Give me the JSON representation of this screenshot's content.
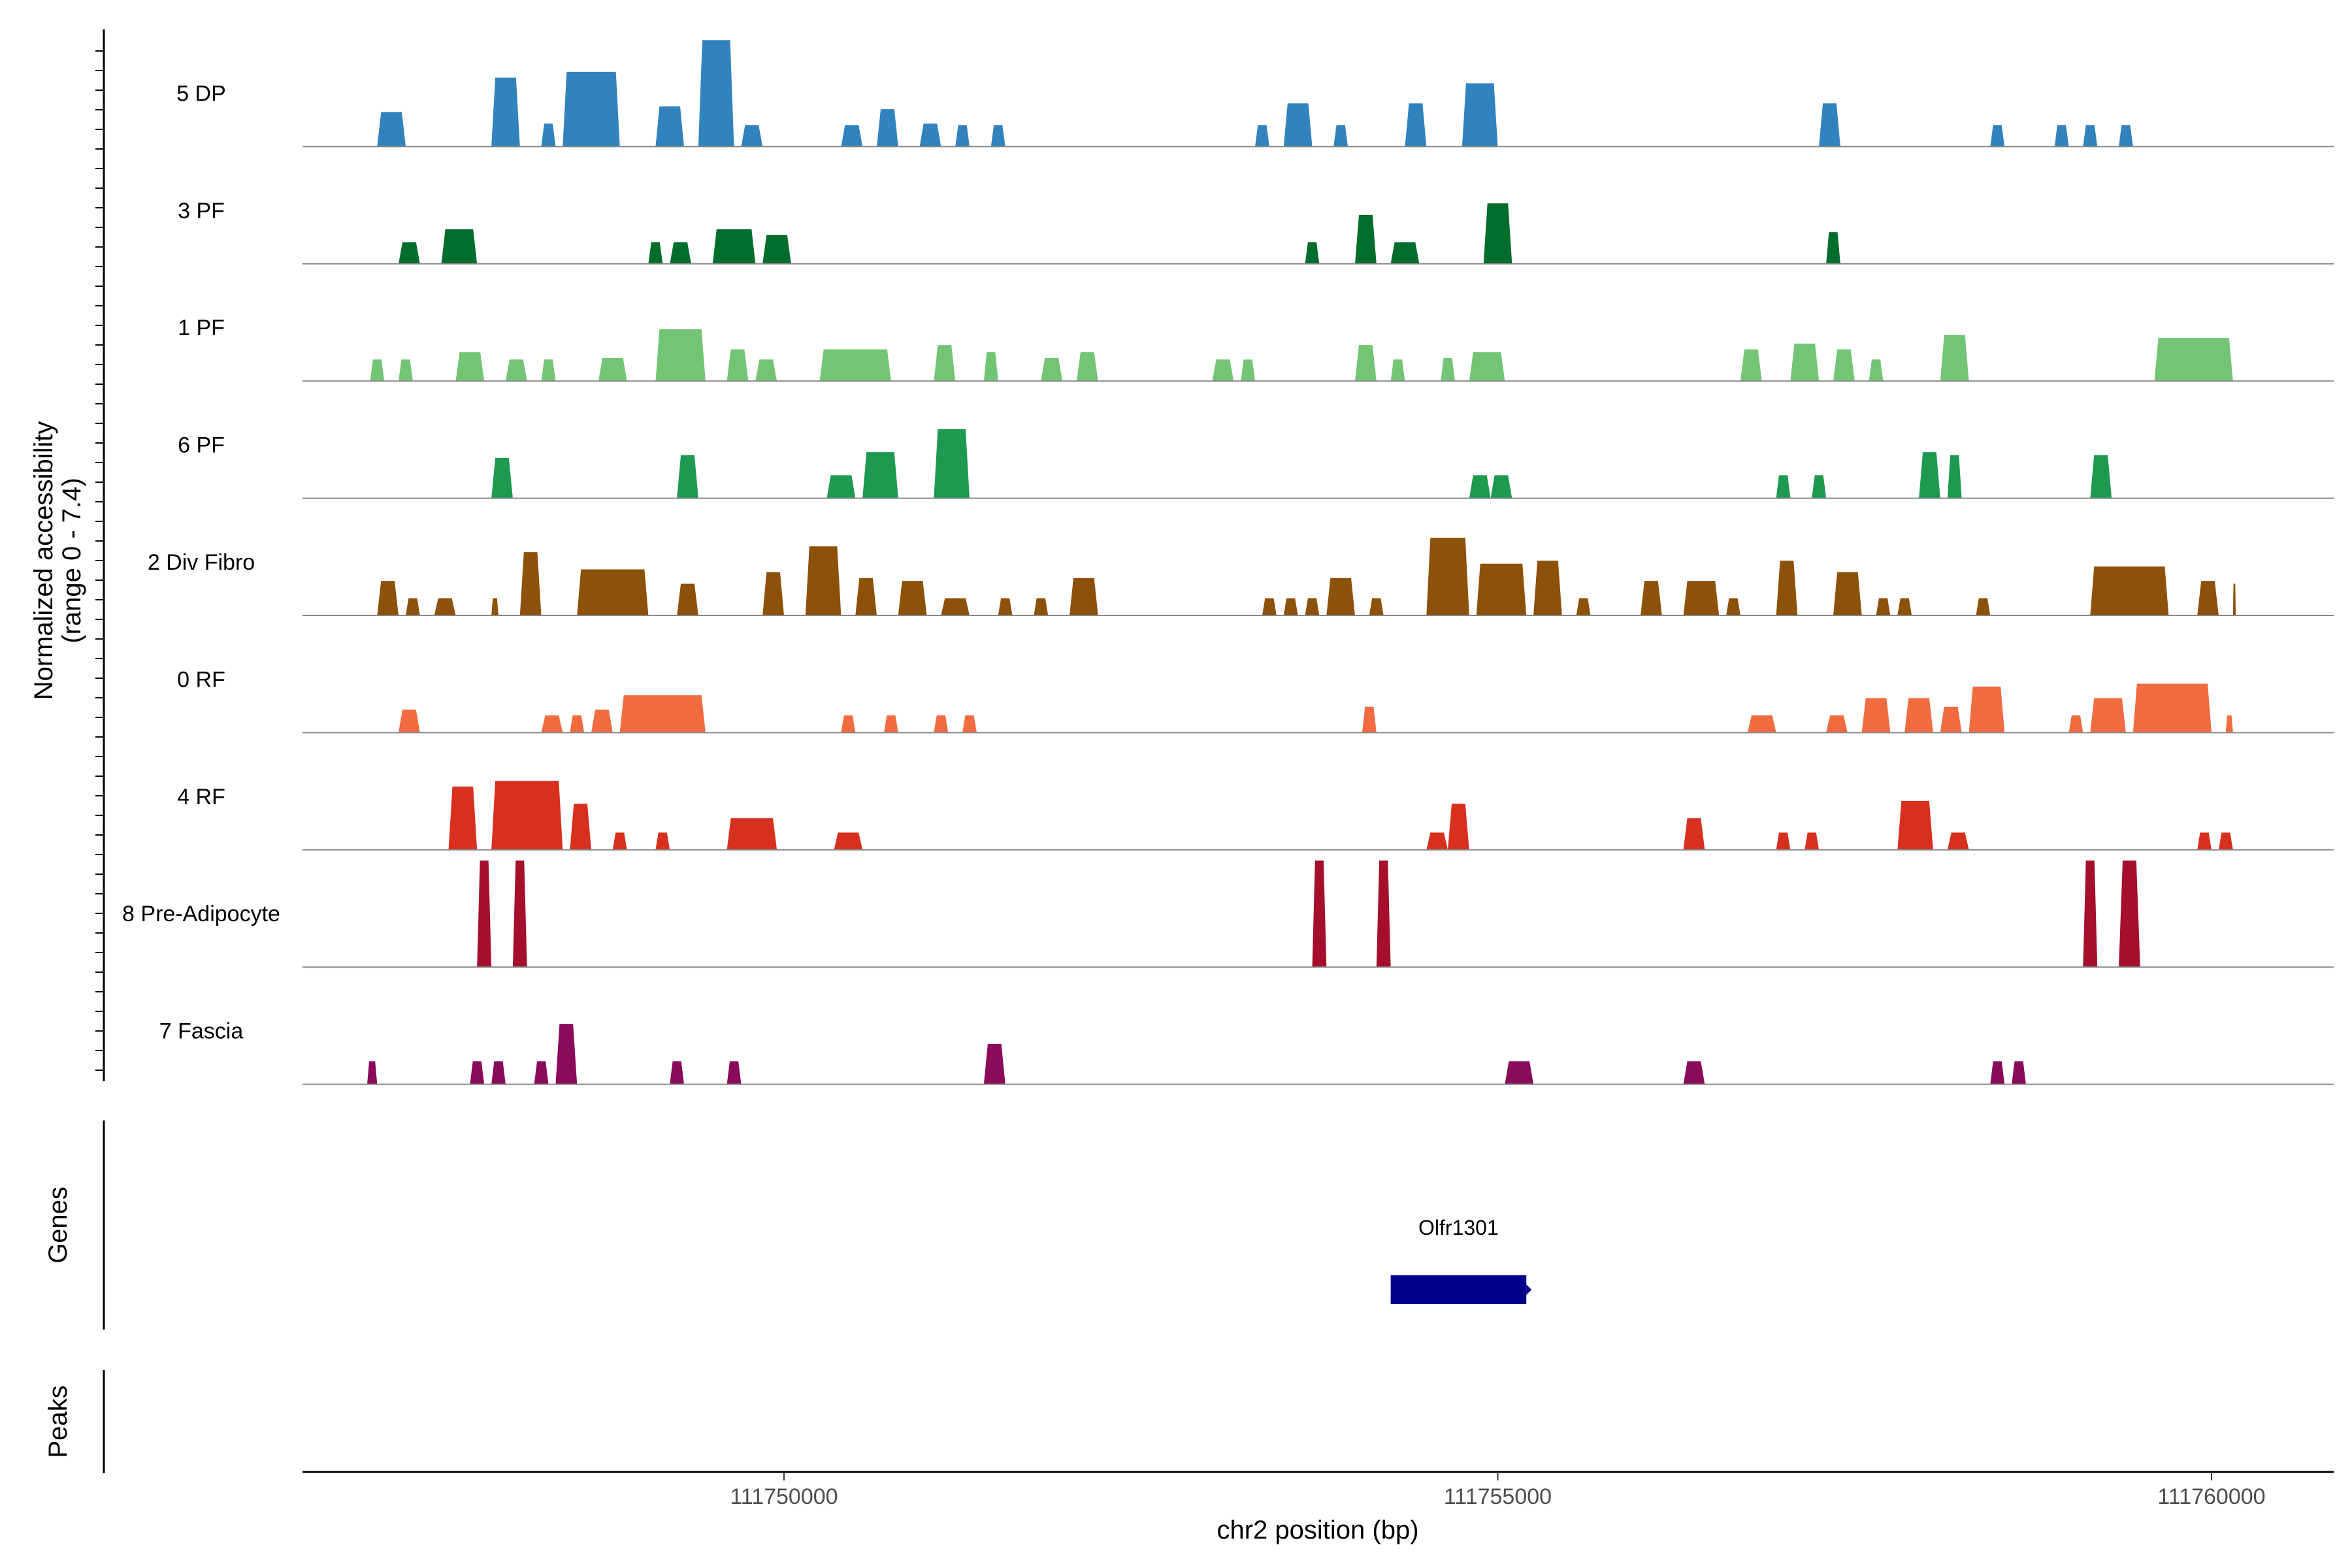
{
  "chart_data": {
    "type": "area",
    "title": "",
    "xlabel": "chr2 position (bp)",
    "ylabel_line1": "Normalized accessibility",
    "ylabel_line2": "(range 0 - 7.4)",
    "y_range": [
      0,
      7.4
    ],
    "x_range": [
      111746600,
      111760800
    ],
    "x_ticks": [
      111750000,
      111755000,
      111760000
    ],
    "x_tick_labels": [
      "111750000",
      "111755000",
      "111760000"
    ],
    "genes_label": "Genes",
    "peaks_label": "Peaks",
    "genes": [
      {
        "name": "Olfr1301",
        "start": 111754250,
        "end": 111755200,
        "strand": "+",
        "color": "#00008B"
      }
    ],
    "tracks": [
      {
        "name": "5 DP",
        "color": "#3182BD",
        "peaks": [
          [
            111747150,
            111747350,
            2.4
          ],
          [
            111747950,
            111748150,
            4.8
          ],
          [
            111748300,
            111748400,
            1.6
          ],
          [
            111748450,
            111748850,
            5.2
          ],
          [
            111749100,
            111749300,
            2.8
          ],
          [
            111749400,
            111749650,
            7.4
          ],
          [
            111749700,
            111749850,
            1.5
          ],
          [
            111750400,
            111750550,
            1.5
          ],
          [
            111750650,
            111750800,
            2.6
          ],
          [
            111750950,
            111751100,
            1.6
          ],
          [
            111751200,
            111751300,
            1.5
          ],
          [
            111751450,
            111751550,
            1.5
          ],
          [
            111753300,
            111753400,
            1.5
          ],
          [
            111753500,
            111753700,
            3.0
          ],
          [
            111753850,
            111753950,
            1.5
          ],
          [
            111754350,
            111754500,
            3.0
          ],
          [
            111754750,
            111755000,
            4.4
          ],
          [
            111757250,
            111757400,
            3.0
          ],
          [
            111758450,
            111758550,
            1.5
          ],
          [
            111758900,
            111759000,
            1.5
          ],
          [
            111759100,
            111759200,
            1.5
          ],
          [
            111759350,
            111759450,
            1.5
          ]
        ]
      },
      {
        "name": "3 PF",
        "color": "#006D2C",
        "peaks": [
          [
            111747300,
            111747450,
            1.5
          ],
          [
            111747600,
            111747850,
            2.4
          ],
          [
            111749050,
            111749150,
            1.5
          ],
          [
            111749200,
            111749350,
            1.5
          ],
          [
            111749500,
            111749800,
            2.4
          ],
          [
            111749850,
            111750050,
            2.0
          ],
          [
            111753650,
            111753750,
            1.5
          ],
          [
            111754000,
            111754150,
            3.4
          ],
          [
            111754250,
            111754450,
            1.5
          ],
          [
            111754900,
            111755100,
            4.2
          ],
          [
            111757300,
            111757400,
            2.2
          ]
        ]
      },
      {
        "name": "1 PF",
        "color": "#74C476",
        "peaks": [
          [
            111747100,
            111747200,
            1.5
          ],
          [
            111747300,
            111747400,
            1.5
          ],
          [
            111747700,
            111747900,
            2.0
          ],
          [
            111748050,
            111748200,
            1.5
          ],
          [
            111748300,
            111748400,
            1.5
          ],
          [
            111748700,
            111748900,
            1.6
          ],
          [
            111749100,
            111749450,
            3.6
          ],
          [
            111749600,
            111749750,
            2.2
          ],
          [
            111749800,
            111749950,
            1.5
          ],
          [
            111750250,
            111750750,
            2.2
          ],
          [
            111751050,
            111751200,
            2.5
          ],
          [
            111751400,
            111751500,
            2.0
          ],
          [
            111751800,
            111751950,
            1.6
          ],
          [
            111752050,
            111752200,
            2.0
          ],
          [
            111753000,
            111753150,
            1.5
          ],
          [
            111753200,
            111753300,
            1.5
          ],
          [
            111754000,
            111754150,
            2.5
          ],
          [
            111754250,
            111754350,
            1.5
          ],
          [
            111754600,
            111754700,
            1.6
          ],
          [
            111754800,
            111755050,
            2.0
          ],
          [
            111756700,
            111756850,
            2.2
          ],
          [
            111757050,
            111757250,
            2.6
          ],
          [
            111757350,
            111757500,
            2.2
          ],
          [
            111757600,
            111757700,
            1.5
          ],
          [
            111758100,
            111758300,
            3.2
          ],
          [
            111759600,
            111760150,
            3.0
          ]
        ]
      },
      {
        "name": "6 PF",
        "color": "#1D9A50",
        "peaks": [
          [
            111747950,
            111748100,
            2.8
          ],
          [
            111749250,
            111749400,
            3.0
          ],
          [
            111750300,
            111750500,
            1.6
          ],
          [
            111750550,
            111750800,
            3.2
          ],
          [
            111751050,
            111751300,
            4.8
          ],
          [
            111754800,
            111754950,
            1.6
          ],
          [
            111754950,
            111755100,
            1.6
          ],
          [
            111756950,
            111757050,
            1.6
          ],
          [
            111757200,
            111757300,
            1.6
          ],
          [
            111757950,
            111758100,
            3.2
          ],
          [
            111758150,
            111758250,
            3.0
          ],
          [
            111759150,
            111759300,
            3.0
          ]
        ]
      },
      {
        "name": "2 Div Fibro",
        "color": "#8C510A",
        "peaks": [
          [
            111747150,
            111747300,
            2.4
          ],
          [
            111747350,
            111747450,
            1.2
          ],
          [
            111747550,
            111747700,
            1.2
          ],
          [
            111747950,
            111748000,
            1.2
          ],
          [
            111748150,
            111748300,
            4.4
          ],
          [
            111748550,
            111749050,
            3.2
          ],
          [
            111749250,
            111749400,
            2.2
          ],
          [
            111749850,
            111750000,
            3.0
          ],
          [
            111750150,
            111750400,
            4.8
          ],
          [
            111750500,
            111750650,
            2.6
          ],
          [
            111750800,
            111751000,
            2.4
          ],
          [
            111751100,
            111751300,
            1.2
          ],
          [
            111751500,
            111751600,
            1.2
          ],
          [
            111751750,
            111751850,
            1.2
          ],
          [
            111752000,
            111752200,
            2.6
          ],
          [
            111753350,
            111753450,
            1.2
          ],
          [
            111753500,
            111753600,
            1.2
          ],
          [
            111753650,
            111753750,
            1.2
          ],
          [
            111753800,
            111754000,
            2.6
          ],
          [
            111754100,
            111754200,
            1.2
          ],
          [
            111754500,
            111754800,
            5.4
          ],
          [
            111754850,
            111755200,
            3.6
          ],
          [
            111755250,
            111755450,
            3.8
          ],
          [
            111755550,
            111755650,
            1.2
          ],
          [
            111756000,
            111756150,
            2.4
          ],
          [
            111756300,
            111756550,
            2.4
          ],
          [
            111756600,
            111756700,
            1.2
          ],
          [
            111756950,
            111757100,
            3.8
          ],
          [
            111757350,
            111757550,
            3.0
          ],
          [
            111757650,
            111757750,
            1.2
          ],
          [
            111757800,
            111757900,
            1.2
          ],
          [
            111758350,
            111758450,
            1.2
          ],
          [
            111759150,
            111759700,
            3.4
          ],
          [
            111759900,
            111760050,
            2.4
          ],
          [
            111760150,
            111760170,
            2.2
          ]
        ]
      },
      {
        "name": "0 RF",
        "color": "#F16B40",
        "peaks": [
          [
            111747300,
            111747450,
            1.6
          ],
          [
            111748300,
            111748450,
            1.2
          ],
          [
            111748500,
            111748600,
            1.2
          ],
          [
            111748650,
            111748800,
            1.6
          ],
          [
            111748850,
            111749450,
            2.6
          ],
          [
            111750400,
            111750500,
            1.2
          ],
          [
            111750700,
            111750800,
            1.2
          ],
          [
            111751050,
            111751150,
            1.2
          ],
          [
            111751250,
            111751350,
            1.2
          ],
          [
            111754050,
            111754150,
            1.8
          ],
          [
            111756750,
            111756950,
            1.2
          ],
          [
            111757300,
            111757450,
            1.2
          ],
          [
            111757550,
            111757750,
            2.4
          ],
          [
            111757850,
            111758050,
            2.4
          ],
          [
            111758100,
            111758250,
            1.8
          ],
          [
            111758300,
            111758550,
            3.2
          ],
          [
            111759000,
            111759100,
            1.2
          ],
          [
            111759150,
            111759400,
            2.4
          ],
          [
            111759450,
            111760000,
            3.4
          ],
          [
            111760100,
            111760150,
            1.2
          ]
        ]
      },
      {
        "name": "4 RF",
        "color": "#D7301F",
        "peaks": [
          [
            111747650,
            111747850,
            4.4
          ],
          [
            111747950,
            111748450,
            4.8
          ],
          [
            111748500,
            111748650,
            3.2
          ],
          [
            111748800,
            111748900,
            1.2
          ],
          [
            111749100,
            111749200,
            1.2
          ],
          [
            111749600,
            111749950,
            2.2
          ],
          [
            111750350,
            111750550,
            1.2
          ],
          [
            111754500,
            111754650,
            1.2
          ],
          [
            111754650,
            111754800,
            3.2
          ],
          [
            111756300,
            111756450,
            2.2
          ],
          [
            111756950,
            111757050,
            1.2
          ],
          [
            111757150,
            111757250,
            1.2
          ],
          [
            111757800,
            111758050,
            3.4
          ],
          [
            111758150,
            111758300,
            1.2
          ],
          [
            111759900,
            111760000,
            1.2
          ],
          [
            111760050,
            111760150,
            1.2
          ]
        ]
      },
      {
        "name": "8 Pre-Adipocyte",
        "color": "#A50F2B",
        "peaks": [
          [
            111747850,
            111747950,
            7.4
          ],
          [
            111748100,
            111748200,
            7.4
          ],
          [
            111753700,
            111753800,
            7.4
          ],
          [
            111754150,
            111754250,
            7.4
          ],
          [
            111759100,
            111759200,
            7.4
          ],
          [
            111759350,
            111759500,
            7.4
          ]
        ]
      },
      {
        "name": "7 Fascia",
        "color": "#8B0A5A",
        "peaks": [
          [
            111747080,
            111747150,
            1.6
          ],
          [
            111747800,
            111747900,
            1.6
          ],
          [
            111747950,
            111748050,
            1.6
          ],
          [
            111748250,
            111748350,
            1.6
          ],
          [
            111748400,
            111748550,
            4.2
          ],
          [
            111749200,
            111749300,
            1.6
          ],
          [
            111749600,
            111749700,
            1.6
          ],
          [
            111751400,
            111751550,
            2.8
          ],
          [
            111755050,
            111755250,
            1.6
          ],
          [
            111756300,
            111756450,
            1.6
          ],
          [
            111758450,
            111758550,
            1.6
          ],
          [
            111758600,
            111758700,
            1.6
          ]
        ]
      }
    ]
  }
}
